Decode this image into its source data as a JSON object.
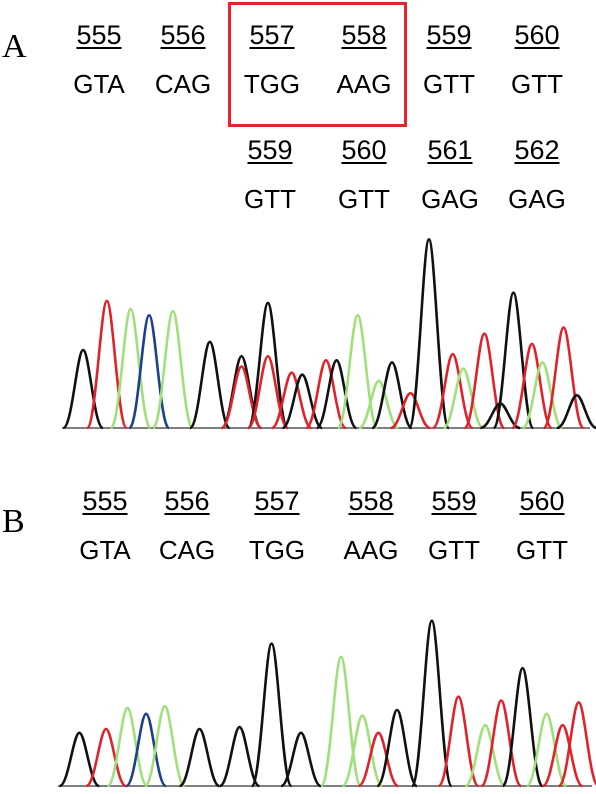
{
  "panels": [
    {
      "label": "A",
      "reference_row": [
        {
          "num": "555",
          "seq": "GTA"
        },
        {
          "num": "556",
          "seq": "CAG"
        },
        {
          "num": "557",
          "seq": "TGG"
        },
        {
          "num": "558",
          "seq": "AAG"
        },
        {
          "num": "559",
          "seq": "GTT"
        },
        {
          "num": "560",
          "seq": "GTT"
        }
      ],
      "shifted_row": [
        {
          "num": "559",
          "seq": "GTT"
        },
        {
          "num": "560",
          "seq": "GTT"
        },
        {
          "num": "561",
          "seq": "GAG"
        },
        {
          "num": "562",
          "seq": "GAG"
        }
      ],
      "highlighted_codons": [
        "557",
        "558"
      ],
      "highlight_color": "#e3262b"
    },
    {
      "label": "B",
      "reference_row": [
        {
          "num": "555",
          "seq": "GTA"
        },
        {
          "num": "556",
          "seq": "CAG"
        },
        {
          "num": "557",
          "seq": "TGG"
        },
        {
          "num": "558",
          "seq": "AAG"
        },
        {
          "num": "559",
          "seq": "GTT"
        },
        {
          "num": "560",
          "seq": "GTT"
        }
      ]
    }
  ],
  "trace_colors": {
    "A": "#3fb21d",
    "C": "#1d3f8f",
    "G": "#111111",
    "T": "#e0232a",
    "N": "#9fe07a"
  },
  "chromatograms": [
    {
      "peaks": [
        {
          "x": 0.04,
          "h": 0.38,
          "b": "G"
        },
        {
          "x": 0.085,
          "h": 0.62,
          "b": "T"
        },
        {
          "x": 0.13,
          "h": 0.58,
          "b": "N"
        },
        {
          "x": 0.165,
          "h": 0.55,
          "b": "C"
        },
        {
          "x": 0.21,
          "h": 0.57,
          "b": "N"
        },
        {
          "x": 0.28,
          "h": 0.42,
          "b": "G"
        },
        {
          "x": 0.34,
          "h": 0.35,
          "b": "G"
        },
        {
          "x": 0.34,
          "h": 0.3,
          "b": "T"
        },
        {
          "x": 0.39,
          "h": 0.61,
          "b": "G"
        },
        {
          "x": 0.39,
          "h": 0.35,
          "b": "T"
        },
        {
          "x": 0.435,
          "h": 0.27,
          "b": "T"
        },
        {
          "x": 0.455,
          "h": 0.26,
          "b": "G"
        },
        {
          "x": 0.5,
          "h": 0.33,
          "b": "T"
        },
        {
          "x": 0.52,
          "h": 0.33,
          "b": "G"
        },
        {
          "x": 0.56,
          "h": 0.55,
          "b": "N"
        },
        {
          "x": 0.6,
          "h": 0.23,
          "b": "N"
        },
        {
          "x": 0.625,
          "h": 0.32,
          "b": "G"
        },
        {
          "x": 0.66,
          "h": 0.17,
          "b": "T"
        },
        {
          "x": 0.695,
          "h": 0.92,
          "b": "G"
        },
        {
          "x": 0.74,
          "h": 0.36,
          "b": "T"
        },
        {
          "x": 0.76,
          "h": 0.29,
          "b": "N"
        },
        {
          "x": 0.8,
          "h": 0.46,
          "b": "T"
        },
        {
          "x": 0.83,
          "h": 0.12,
          "b": "G"
        },
        {
          "x": 0.855,
          "h": 0.66,
          "b": "G"
        },
        {
          "x": 0.89,
          "h": 0.41,
          "b": "T"
        },
        {
          "x": 0.91,
          "h": 0.32,
          "b": "N"
        },
        {
          "x": 0.95,
          "h": 0.49,
          "b": "T"
        },
        {
          "x": 0.975,
          "h": 0.16,
          "b": "G"
        }
      ]
    },
    {
      "peaks": [
        {
          "x": 0.04,
          "h": 0.28,
          "b": "G"
        },
        {
          "x": 0.09,
          "h": 0.3,
          "b": "T"
        },
        {
          "x": 0.13,
          "h": 0.41,
          "b": "N"
        },
        {
          "x": 0.165,
          "h": 0.38,
          "b": "C"
        },
        {
          "x": 0.2,
          "h": 0.42,
          "b": "N"
        },
        {
          "x": 0.265,
          "h": 0.3,
          "b": "G"
        },
        {
          "x": 0.34,
          "h": 0.31,
          "b": "G"
        },
        {
          "x": 0.4,
          "h": 0.75,
          "b": "G"
        },
        {
          "x": 0.455,
          "h": 0.28,
          "b": "G"
        },
        {
          "x": 0.53,
          "h": 0.68,
          "b": "N"
        },
        {
          "x": 0.57,
          "h": 0.37,
          "b": "N"
        },
        {
          "x": 0.6,
          "h": 0.28,
          "b": "T"
        },
        {
          "x": 0.635,
          "h": 0.4,
          "b": "G"
        },
        {
          "x": 0.7,
          "h": 0.87,
          "b": "G"
        },
        {
          "x": 0.75,
          "h": 0.47,
          "b": "T"
        },
        {
          "x": 0.8,
          "h": 0.32,
          "b": "N"
        },
        {
          "x": 0.83,
          "h": 0.45,
          "b": "T"
        },
        {
          "x": 0.87,
          "h": 0.62,
          "b": "G"
        },
        {
          "x": 0.915,
          "h": 0.38,
          "b": "N"
        },
        {
          "x": 0.945,
          "h": 0.32,
          "b": "T"
        },
        {
          "x": 0.975,
          "h": 0.44,
          "b": "T"
        }
      ]
    }
  ]
}
